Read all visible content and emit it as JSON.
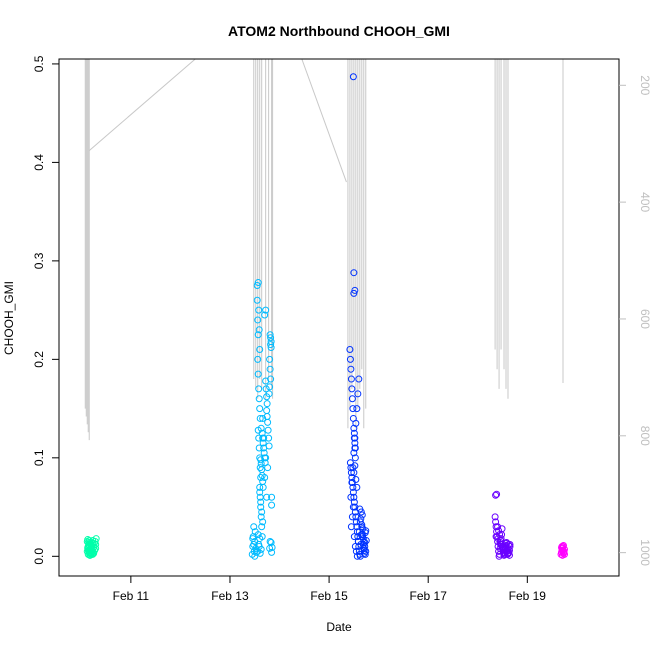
{
  "chart_data": {
    "type": "scatter",
    "title": "ATOM2 Northbound CHOOH_GMI",
    "xlabel": "Date",
    "ylabel": "CHOOH_GMI",
    "x_tick_labels": [
      "Feb 11",
      "Feb 13",
      "Feb 15",
      "Feb 17",
      "Feb 19"
    ],
    "x_tick_days": [
      11,
      13,
      15,
      17,
      19
    ],
    "xlim_days": [
      9.55,
      20.85
    ],
    "ylim": [
      -0.02,
      0.505
    ],
    "y_ticks": [
      0.0,
      0.1,
      0.2,
      0.3,
      0.4,
      0.5
    ],
    "y_tick_labels": [
      "0.0",
      "0.1",
      "0.2",
      "0.3",
      "0.4",
      "0.5"
    ],
    "right_axis": {
      "reversed": true,
      "lim": [
        1040,
        155
      ],
      "ticks": [
        200,
        400,
        600,
        800,
        1000
      ],
      "tick_labels": [
        "200",
        "400",
        "600",
        "800",
        "1000"
      ],
      "color": "#bfbfbf"
    },
    "colors": {
      "pressure_trace": "#c8c8c8",
      "flight1": "#00ffaa",
      "flight2": "#00bbff",
      "flight3": "#0033ff",
      "flight4": "#6a00ff",
      "flight5": "#ff00ff"
    },
    "series": [
      {
        "color": "#00ffaa",
        "x": [
          10.12,
          10.13,
          10.14,
          10.15,
          10.16,
          10.17,
          10.18,
          10.19,
          10.2,
          10.21,
          10.22,
          10.23,
          10.12,
          10.14,
          10.16,
          10.18,
          10.2,
          10.22,
          10.13,
          10.15,
          10.17,
          10.19,
          10.21,
          10.23,
          10.14,
          10.16,
          10.18,
          10.2,
          10.24,
          10.25,
          10.26,
          10.27,
          10.28,
          10.29,
          10.3,
          10.13,
          10.17,
          10.21,
          10.25,
          10.29,
          10.15,
          10.19,
          10.23
        ],
        "y": [
          0.005,
          0.008,
          0.01,
          0.012,
          0.004,
          0.006,
          0.014,
          0.009,
          0.003,
          0.011,
          0.007,
          0.013,
          0.015,
          0.002,
          0.016,
          0.001,
          0.012,
          0.005,
          0.009,
          0.014,
          0.003,
          0.007,
          0.01,
          0.016,
          0.006,
          0.011,
          0.008,
          0.002,
          0.004,
          0.009,
          0.013,
          0.006,
          0.015,
          0.012,
          0.018,
          0.017,
          0.001,
          0.004,
          0.003,
          0.008,
          0.006,
          0.013,
          0.002
        ]
      },
      {
        "color": "#00bbff",
        "x": [
          13.45,
          13.46,
          13.47,
          13.48,
          13.49,
          13.5,
          13.51,
          13.52,
          13.5,
          13.48,
          13.46,
          13.53,
          13.55,
          13.57,
          13.55,
          13.56,
          13.57,
          13.58,
          13.59,
          13.6,
          13.56,
          13.57,
          13.58,
          13.59,
          13.6,
          13.61,
          13.57,
          13.58,
          13.59,
          13.6,
          13.61,
          13.62,
          13.6,
          13.61,
          13.62,
          13.63,
          13.64,
          13.65,
          13.6,
          13.62,
          13.64,
          13.66,
          13.62,
          13.63,
          13.64,
          13.65,
          13.66,
          13.67,
          13.63,
          13.65,
          13.66,
          13.67,
          13.68,
          13.69,
          13.7,
          13.71,
          13.7,
          13.72,
          13.72,
          13.73,
          13.74,
          13.75,
          13.74,
          13.75,
          13.76,
          13.77,
          13.78,
          13.79,
          13.8,
          13.81,
          13.82,
          13.8,
          13.79,
          13.81,
          13.82,
          13.83,
          13.82,
          13.83,
          13.84,
          13.84,
          13.8,
          13.81,
          13.56,
          13.58,
          13.6,
          13.57,
          13.59,
          13.61,
          13.63,
          13.84,
          13.85,
          13.83,
          13.66,
          13.68,
          13.7,
          13.72,
          13.74,
          13.76
        ],
        "y": [
          0.002,
          0.01,
          0.02,
          0.03,
          0.005,
          0.015,
          0.025,
          0.008,
          0.0,
          0.012,
          0.018,
          0.004,
          0.275,
          0.278,
          0.26,
          0.24,
          0.225,
          0.25,
          0.23,
          0.21,
          0.2,
          0.185,
          0.17,
          0.16,
          0.15,
          0.14,
          0.128,
          0.12,
          0.11,
          0.1,
          0.09,
          0.08,
          0.07,
          0.06,
          0.05,
          0.04,
          0.03,
          0.02,
          0.065,
          0.055,
          0.045,
          0.035,
          0.098,
          0.094,
          0.088,
          0.082,
          0.076,
          0.07,
          0.13,
          0.125,
          0.12,
          0.115,
          0.11,
          0.105,
          0.1,
          0.095,
          0.245,
          0.25,
          0.178,
          0.17,
          0.162,
          0.155,
          0.148,
          0.142,
          0.136,
          0.128,
          0.12,
          0.112,
          0.2,
          0.19,
          0.18,
          0.172,
          0.165,
          0.225,
          0.222,
          0.218,
          0.215,
          0.212,
          0.06,
          0.052,
          0.008,
          0.015,
          0.005,
          0.012,
          0.018,
          0.022,
          0.01,
          0.003,
          0.007,
          0.004,
          0.009,
          0.014,
          0.14,
          0.12,
          0.08,
          0.1,
          0.06,
          0.09
        ]
      },
      {
        "color": "#0033ff",
        "x": [
          15.42,
          15.43,
          15.44,
          15.45,
          15.46,
          15.47,
          15.48,
          15.49,
          15.5,
          15.51,
          15.52,
          15.53,
          15.43,
          15.44,
          15.45,
          15.46,
          15.47,
          15.48,
          15.49,
          15.5,
          15.51,
          15.52,
          15.53,
          15.54,
          15.55,
          15.56,
          15.57,
          15.58,
          15.59,
          15.6,
          15.61,
          15.62,
          15.63,
          15.64,
          15.65,
          15.66,
          15.67,
          15.68,
          15.69,
          15.7,
          15.71,
          15.72,
          15.73,
          15.74,
          15.75,
          15.44,
          15.46,
          15.48,
          15.5,
          15.52,
          15.54,
          15.56,
          15.58,
          15.6,
          15.62,
          15.64,
          15.66,
          15.68,
          15.7,
          15.72,
          15.74,
          15.5,
          15.52,
          15.54,
          15.56,
          15.45,
          15.47,
          15.49,
          15.51,
          15.53,
          15.55,
          15.57,
          15.59,
          15.61,
          15.63,
          15.65,
          15.67,
          15.69,
          15.71,
          15.73,
          15.5,
          15.52,
          15.49,
          15.5,
          15.51,
          15.52,
          15.53
        ],
        "y": [
          0.21,
          0.2,
          0.19,
          0.18,
          0.17,
          0.16,
          0.15,
          0.14,
          0.13,
          0.12,
          0.11,
          0.1,
          0.095,
          0.09,
          0.085,
          0.08,
          0.075,
          0.07,
          0.065,
          0.06,
          0.055,
          0.05,
          0.045,
          0.04,
          0.035,
          0.03,
          0.025,
          0.02,
          0.015,
          0.01,
          0.005,
          0.002,
          0.0,
          0.012,
          0.022,
          0.032,
          0.042,
          0.028,
          0.018,
          0.008,
          0.003,
          0.014,
          0.024,
          0.026,
          0.016,
          0.06,
          0.075,
          0.09,
          0.105,
          0.12,
          0.135,
          0.15,
          0.165,
          0.18,
          0.048,
          0.038,
          0.03,
          0.022,
          0.015,
          0.01,
          0.005,
          0.085,
          0.092,
          0.078,
          0.07,
          0.03,
          0.04,
          0.05,
          0.02,
          0.01,
          0.005,
          0.0,
          0.015,
          0.025,
          0.035,
          0.045,
          0.02,
          0.012,
          0.006,
          0.002,
          0.288,
          0.27,
          0.487,
          0.267,
          0.125,
          0.115,
          0.11
        ]
      },
      {
        "color": "#6a00ff",
        "x": [
          18.35,
          18.36,
          18.37,
          18.38,
          18.39,
          18.4,
          18.41,
          18.42,
          18.43,
          18.44,
          18.45,
          18.46,
          18.47,
          18.48,
          18.49,
          18.5,
          18.51,
          18.52,
          18.53,
          18.54,
          18.55,
          18.56,
          18.57,
          18.58,
          18.59,
          18.6,
          18.61,
          18.62,
          18.63,
          18.64,
          18.65,
          18.36,
          18.38,
          18.4,
          18.42,
          18.44,
          18.46,
          18.48,
          18.5,
          18.52,
          18.54,
          18.56,
          18.58,
          18.6,
          18.62,
          18.64,
          18.37,
          18.41,
          18.45,
          18.49,
          18.53,
          18.57,
          18.61,
          18.65
        ],
        "y": [
          0.04,
          0.035,
          0.03,
          0.025,
          0.02,
          0.015,
          0.01,
          0.005,
          0.0,
          0.002,
          0.008,
          0.012,
          0.018,
          0.022,
          0.028,
          0.01,
          0.006,
          0.003,
          0.001,
          0.004,
          0.007,
          0.009,
          0.011,
          0.013,
          0.005,
          0.002,
          0.008,
          0.012,
          0.004,
          0.006,
          0.01,
          0.062,
          0.063,
          0.03,
          0.026,
          0.022,
          0.016,
          0.012,
          0.008,
          0.004,
          0.002,
          0.01,
          0.014,
          0.006,
          0.003,
          0.001,
          0.02,
          0.018,
          0.014,
          0.009,
          0.007,
          0.005,
          0.003,
          0.012
        ]
      },
      {
        "color": "#ff00ff",
        "x": [
          19.68,
          19.69,
          19.7,
          19.71,
          19.72,
          19.73,
          19.74,
          19.75,
          19.69,
          19.71,
          19.73,
          19.75,
          19.7,
          19.72,
          19.74
        ],
        "y": [
          0.002,
          0.004,
          0.006,
          0.008,
          0.01,
          0.003,
          0.005,
          0.007,
          0.009,
          0.001,
          0.011,
          0.002,
          0.01,
          0.006,
          0.004
        ]
      }
    ]
  }
}
